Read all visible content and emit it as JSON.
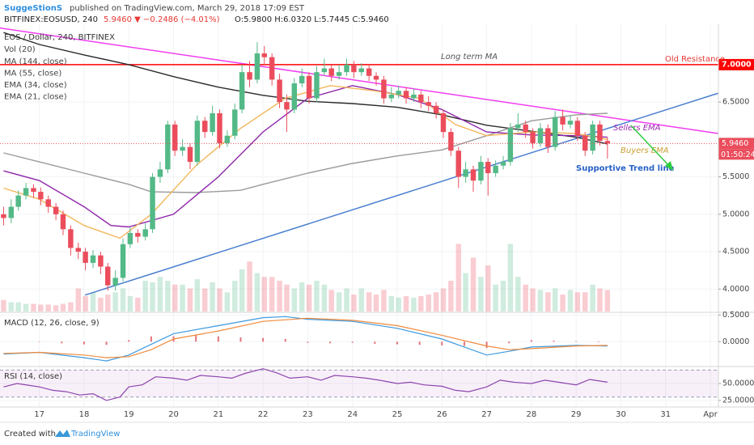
{
  "header": {
    "author": "SuggeStionS",
    "published": "published on TradingView.com, March 29, 2018 17:09 EST",
    "symbol": "BITFINEX:EOSUSD, 240",
    "change": "5.9460 ▼ −0.2486 (−4.01%)",
    "ohlc": "O:5.9800 H:6.0320 L:5.7445 C:5.9460"
  },
  "footer": {
    "created": "Created with",
    "brand": "TradingView"
  },
  "chart_data": [
    {
      "type": "candlestick",
      "title": "EOS / Dollar, 240, BITFINEX",
      "up_color": "#53b987",
      "down_color": "#eb4d5c",
      "grid": true,
      "xlim": [
        16.12,
        32.18
      ],
      "xticks": [
        17,
        18,
        19,
        20,
        21,
        22,
        23,
        24,
        25,
        26,
        27,
        28,
        29,
        30,
        31,
        {
          "value": 32,
          "label": "Apr"
        }
      ],
      "ylim": [
        3.7,
        7.54
      ],
      "yticks": [
        {
          "value": 4.0,
          "label": "4.0000"
        },
        {
          "value": 4.5,
          "label": "4.5000"
        },
        {
          "value": 5.0,
          "label": "5.0000"
        },
        {
          "value": 5.5,
          "label": "5.5000"
        },
        {
          "value": 6.5,
          "label": "6.5000"
        }
      ],
      "x": [
        16.2,
        16.37,
        16.53,
        16.7,
        16.87,
        17.03,
        17.2,
        17.37,
        17.53,
        17.7,
        17.87,
        18.03,
        18.2,
        18.37,
        18.53,
        18.7,
        18.87,
        19.03,
        19.2,
        19.37,
        19.53,
        19.7,
        19.87,
        20.03,
        20.2,
        20.37,
        20.53,
        20.7,
        20.87,
        21.03,
        21.2,
        21.37,
        21.53,
        21.7,
        21.87,
        22.03,
        22.2,
        22.37,
        22.53,
        22.7,
        22.87,
        23.03,
        23.2,
        23.37,
        23.53,
        23.7,
        23.87,
        24.03,
        24.2,
        24.37,
        24.53,
        24.7,
        24.87,
        25.03,
        25.2,
        25.37,
        25.53,
        25.7,
        25.87,
        26.03,
        26.2,
        26.37,
        26.53,
        26.7,
        26.87,
        27.03,
        27.2,
        27.37,
        27.53,
        27.7,
        27.87,
        28.03,
        28.2,
        28.37,
        28.53,
        28.7,
        28.87,
        29.03,
        29.2,
        29.37,
        29.53,
        29.7
      ],
      "open": [
        5.0,
        4.95,
        5.1,
        5.25,
        5.35,
        5.3,
        5.2,
        5.1,
        5.0,
        4.8,
        4.55,
        4.5,
        4.35,
        4.45,
        4.3,
        4.05,
        4.15,
        4.6,
        4.75,
        4.7,
        4.8,
        5.5,
        5.6,
        6.2,
        5.85,
        5.9,
        5.7,
        6.25,
        6.1,
        6.35,
        5.95,
        6.05,
        6.4,
        6.9,
        6.8,
        7.15,
        7.1,
        6.8,
        6.5,
        6.4,
        6.75,
        6.85,
        6.55,
        6.9,
        6.95,
        6.85,
        6.9,
        7.0,
        6.9,
        6.95,
        6.85,
        6.8,
        6.55,
        6.6,
        6.65,
        6.55,
        6.6,
        6.5,
        6.45,
        6.35,
        6.1,
        5.85,
        5.5,
        5.6,
        5.45,
        5.7,
        5.55,
        5.65,
        5.7,
        6.15,
        6.2,
        6.1,
        5.95,
        6.15,
        5.9,
        6.3,
        6.2,
        6.25,
        6.05,
        5.85,
        6.2,
        5.98
      ],
      "high": [
        5.1,
        5.2,
        5.32,
        5.42,
        5.4,
        5.36,
        5.25,
        5.15,
        5.05,
        4.85,
        4.62,
        4.55,
        4.52,
        4.5,
        4.35,
        4.25,
        4.68,
        4.82,
        4.8,
        4.88,
        5.55,
        5.7,
        6.25,
        6.25,
        6.0,
        5.95,
        6.32,
        6.3,
        6.45,
        6.4,
        6.12,
        6.48,
        7.0,
        7.05,
        7.3,
        7.25,
        7.15,
        6.88,
        6.6,
        6.82,
        6.95,
        6.9,
        6.98,
        7.08,
        7.0,
        7.0,
        7.08,
        7.05,
        7.02,
        7.0,
        6.9,
        6.85,
        6.7,
        6.72,
        6.7,
        6.68,
        6.65,
        6.58,
        6.5,
        6.4,
        6.15,
        5.9,
        5.7,
        5.65,
        5.78,
        5.75,
        5.72,
        5.78,
        6.22,
        6.35,
        6.25,
        6.15,
        6.22,
        6.2,
        6.38,
        6.4,
        6.32,
        6.3,
        6.1,
        6.25,
        6.25,
        6.032
      ],
      "low": [
        4.85,
        4.88,
        5.05,
        5.2,
        5.22,
        5.12,
        5.02,
        4.92,
        4.72,
        4.45,
        4.4,
        4.25,
        4.28,
        4.2,
        3.98,
        3.98,
        4.1,
        4.55,
        4.62,
        4.65,
        4.75,
        5.42,
        5.55,
        5.78,
        5.78,
        5.6,
        5.65,
        6.02,
        6.05,
        5.88,
        5.9,
        6.0,
        6.35,
        6.7,
        6.75,
        7.0,
        6.72,
        6.42,
        6.1,
        6.35,
        6.7,
        6.48,
        6.5,
        6.85,
        6.78,
        6.8,
        6.85,
        6.82,
        6.85,
        6.78,
        6.72,
        6.48,
        6.5,
        6.55,
        6.48,
        6.5,
        6.42,
        6.38,
        6.28,
        6.02,
        5.78,
        5.35,
        5.42,
        5.3,
        5.4,
        5.25,
        5.5,
        5.6,
        5.65,
        6.1,
        6.02,
        5.88,
        5.9,
        5.82,
        5.85,
        6.12,
        6.15,
        5.98,
        5.78,
        5.8,
        5.92,
        5.7445
      ],
      "close": [
        4.95,
        5.1,
        5.25,
        5.35,
        5.3,
        5.2,
        5.1,
        5.0,
        4.8,
        4.55,
        4.5,
        4.35,
        4.45,
        4.3,
        4.05,
        4.15,
        4.6,
        4.75,
        4.7,
        4.8,
        5.5,
        5.6,
        6.2,
        5.85,
        5.9,
        5.7,
        6.25,
        6.1,
        6.35,
        5.95,
        6.05,
        6.4,
        6.9,
        6.8,
        7.15,
        7.1,
        6.8,
        6.5,
        6.4,
        6.75,
        6.85,
        6.55,
        6.9,
        6.95,
        6.85,
        6.9,
        7.0,
        6.9,
        6.95,
        6.85,
        6.8,
        6.55,
        6.6,
        6.65,
        6.55,
        6.6,
        6.5,
        6.45,
        6.35,
        6.1,
        5.85,
        5.5,
        5.6,
        5.45,
        5.7,
        5.55,
        5.65,
        5.7,
        6.15,
        6.2,
        6.1,
        5.95,
        6.15,
        5.9,
        6.3,
        6.2,
        6.25,
        6.05,
        5.85,
        6.2,
        5.98,
        5.946
      ],
      "last_label": "5.9460",
      "countdown": "01:50:24",
      "volume": {
        "name": "Vol (20)",
        "ylim": [
          0,
          100
        ],
        "values": [
          15,
          12,
          12,
          10,
          10,
          9,
          9,
          8,
          10,
          12,
          30,
          20,
          25,
          18,
          22,
          25,
          30,
          20,
          18,
          40,
          38,
          45,
          40,
          35,
          35,
          30,
          42,
          30,
          38,
          30,
          25,
          40,
          55,
          65,
          50,
          45,
          45,
          40,
          35,
          30,
          38,
          35,
          40,
          35,
          28,
          25,
          30,
          22,
          30,
          25,
          22,
          28,
          20,
          18,
          20,
          18,
          20,
          22,
          25,
          30,
          40,
          88,
          50,
          70,
          45,
          60,
          35,
          40,
          88,
          45,
          35,
          30,
          28,
          25,
          30,
          22,
          28,
          25,
          25,
          35,
          30,
          28
        ]
      },
      "series": [
        {
          "name": "MA (144, close)",
          "color": "#2b2b2b",
          "x": [
            16.2,
            17,
            18,
            19,
            20,
            21,
            22,
            23,
            24,
            25,
            26,
            27,
            28,
            29,
            29.7
          ],
          "values": [
            7.43,
            7.27,
            7.13,
            7.0,
            6.84,
            6.7,
            6.59,
            6.51,
            6.48,
            6.43,
            6.33,
            6.19,
            6.11,
            6.03,
            5.94
          ]
        },
        {
          "name": "MA (55, close)",
          "color": "#9a9a9a",
          "x": [
            16.2,
            17,
            18,
            19,
            19.5,
            20.5,
            21.5,
            22,
            23,
            24,
            25,
            26,
            27,
            28,
            29,
            29.7
          ],
          "values": [
            5.82,
            5.7,
            5.55,
            5.4,
            5.3,
            5.29,
            5.32,
            5.4,
            5.55,
            5.68,
            5.78,
            5.86,
            6.05,
            6.25,
            6.33,
            6.35
          ]
        },
        {
          "name": "EMA (34, close)",
          "color": "#8e24aa",
          "x": [
            16.2,
            17,
            18,
            18.6,
            19,
            20,
            21,
            22,
            23,
            24,
            25,
            26,
            27,
            28,
            29,
            29.7
          ],
          "values": [
            5.58,
            5.45,
            5.1,
            4.85,
            4.83,
            5.0,
            5.5,
            6.1,
            6.55,
            6.72,
            6.6,
            6.4,
            6.1,
            6.06,
            6.05,
            6.03
          ]
        },
        {
          "name": "EMA (21, close)",
          "color": "#f2b65a",
          "x": [
            16.2,
            17,
            18,
            18.8,
            19.5,
            20.5,
            21.5,
            22.5,
            23.5,
            24.5,
            25.5,
            26.3,
            27,
            28,
            29,
            29.7
          ],
          "values": [
            5.35,
            5.2,
            4.85,
            4.68,
            5.0,
            5.65,
            6.15,
            6.55,
            6.72,
            6.65,
            6.55,
            6.2,
            6.05,
            6.1,
            6.08,
            6.0
          ]
        }
      ],
      "trendlines": [
        {
          "color": "#f03ef0",
          "x": [
            16.12,
            32.18
          ],
          "values": [
            7.49,
            6.08
          ]
        },
        {
          "color": "#4a7fd0",
          "x": [
            18.02,
            32.18
          ],
          "values": [
            3.92,
            6.62
          ]
        }
      ],
      "hlines": [
        {
          "value": 7.0,
          "label": "7.0000",
          "color": "#ff0000"
        }
      ],
      "annotations": [
        {
          "text": "Long term MA",
          "color": "#555555"
        },
        {
          "text": "Old Resistance",
          "color": "#e53935"
        },
        {
          "text": "Sellers EMA",
          "color": "#9c27b0"
        },
        {
          "text": "Buyers EMA",
          "color": "#c9a032"
        },
        {
          "text": "Supportive Trend line",
          "color": "#2962c8"
        }
      ]
    },
    {
      "type": "line",
      "title": "MACD (12, 26, close, 9)",
      "ylim": [
        -0.45,
        0.52
      ],
      "yticks": [
        {
          "value": 0.0,
          "label": "0.0000"
        },
        {
          "value": 0.5,
          "label": "0.5000"
        }
      ],
      "series": [
        {
          "color": "#3d9ae0",
          "x": [
            16.2,
            17,
            18,
            18.5,
            19,
            19.5,
            20,
            21,
            22,
            22.5,
            23,
            24,
            25,
            26,
            26.5,
            27,
            27.5,
            28,
            29,
            29.7
          ],
          "values": [
            -0.23,
            -0.2,
            -0.3,
            -0.36,
            -0.25,
            -0.05,
            0.15,
            0.3,
            0.45,
            0.47,
            0.42,
            0.38,
            0.25,
            0.05,
            -0.1,
            -0.25,
            -0.18,
            -0.1,
            -0.07,
            -0.08
          ]
        },
        {
          "color": "#f08a3c",
          "x": [
            16.2,
            17,
            18,
            18.5,
            19,
            19.5,
            20,
            21,
            22,
            23,
            24,
            25,
            26,
            27,
            27.5,
            28,
            29,
            29.7
          ],
          "values": [
            -0.22,
            -0.2,
            -0.25,
            -0.3,
            -0.28,
            -0.15,
            0.05,
            0.2,
            0.38,
            0.44,
            0.4,
            0.3,
            0.12,
            -0.08,
            -0.15,
            -0.13,
            -0.08,
            -0.07
          ]
        }
      ],
      "histogram": {
        "color": "#e5737a",
        "x": [
          17,
          17.5,
          18,
          18.5,
          19,
          19.5,
          20,
          20.5,
          21,
          21.5,
          22,
          22.5,
          23,
          23.5,
          24,
          24.5,
          25,
          25.5,
          26,
          26.5,
          27,
          27.5,
          28,
          28.5,
          29,
          29.5
        ],
        "values": [
          0,
          -0.03,
          -0.05,
          -0.06,
          0.03,
          0.1,
          0.1,
          0.12,
          0.1,
          0.08,
          0.07,
          0.05,
          -0.02,
          -0.03,
          -0.02,
          -0.04,
          -0.05,
          -0.06,
          -0.07,
          -0.08,
          -0.12,
          -0.03,
          0.03,
          0.02,
          0.01,
          -0.01
        ]
      }
    },
    {
      "type": "line",
      "title": "RSI (14, close)",
      "ylim": [
        16.5,
        74
      ],
      "yticks": [
        {
          "value": 25,
          "label": "25.0000"
        },
        {
          "value": 50,
          "label": "50.0000"
        }
      ],
      "band": [
        30,
        70
      ],
      "band_color": "#9c27b0",
      "series": [
        {
          "color": "#8e44ad",
          "x": [
            16.2,
            16.5,
            16.8,
            17,
            17.3,
            17.6,
            17.9,
            18.2,
            18.5,
            18.8,
            19,
            19.3,
            19.6,
            20,
            20.3,
            20.6,
            21,
            21.3,
            21.6,
            22,
            22.3,
            22.6,
            23,
            23.3,
            23.6,
            24,
            24.3,
            24.6,
            25,
            25.3,
            25.6,
            26,
            26.3,
            26.6,
            27,
            27.3,
            27.6,
            28,
            28.3,
            28.6,
            29,
            29.3,
            29.7
          ],
          "values": [
            45,
            50,
            47,
            45,
            40,
            38,
            33,
            35,
            25,
            30,
            45,
            48,
            60,
            58,
            55,
            62,
            60,
            58,
            65,
            72,
            66,
            58,
            60,
            55,
            62,
            60,
            58,
            55,
            50,
            52,
            48,
            46,
            40,
            38,
            45,
            55,
            52,
            50,
            55,
            52,
            48,
            56,
            52
          ]
        }
      ]
    }
  ]
}
